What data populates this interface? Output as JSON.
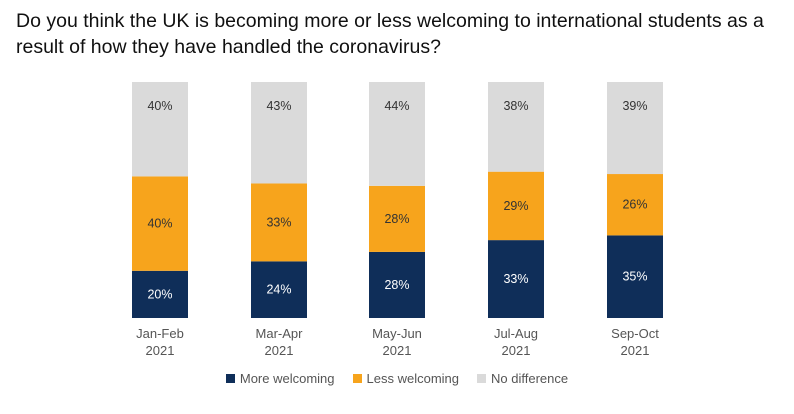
{
  "title": "Do you think the UK is becoming more or less welcoming to international students as a result of how they have handled the coronavirus?",
  "colors": {
    "more": "#0f2e59",
    "less": "#f7a41c",
    "none": "#dadada",
    "text_dark": "#333333",
    "text_light": "#ffffff"
  },
  "chart_data": {
    "type": "bar",
    "stacked": true,
    "categories": [
      [
        "Jan-Feb",
        "2021"
      ],
      [
        "Mar-Apr",
        "2021"
      ],
      [
        "May-Jun",
        "2021"
      ],
      [
        "Jul-Aug",
        "2021"
      ],
      [
        "Sep-Oct",
        "2021"
      ]
    ],
    "series": [
      {
        "name": "More welcoming",
        "values": [
          20,
          24,
          28,
          33,
          35
        ],
        "labels": [
          "20%",
          "24%",
          "28%",
          "33%",
          "35%"
        ]
      },
      {
        "name": "Less welcoming",
        "values": [
          40,
          33,
          28,
          29,
          26
        ],
        "labels": [
          "40%",
          "33%",
          "28%",
          "29%",
          "26%"
        ]
      },
      {
        "name": "No difference",
        "values": [
          40,
          43,
          44,
          38,
          39
        ],
        "labels": [
          "40%",
          "43%",
          "44%",
          "38%",
          "39%"
        ]
      }
    ],
    "ylim": [
      0,
      100
    ],
    "legend_position": "bottom"
  },
  "legend": [
    {
      "label": "More welcoming",
      "color": "#0f2e59"
    },
    {
      "label": "Less welcoming",
      "color": "#f7a41c"
    },
    {
      "label": "No difference",
      "color": "#dadada"
    }
  ]
}
